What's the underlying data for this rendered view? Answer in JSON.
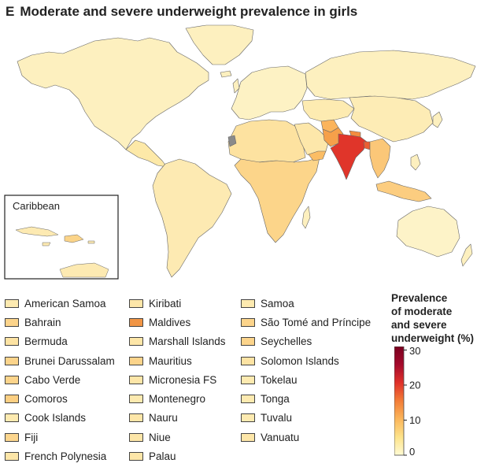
{
  "figure": {
    "panel_letter": "E",
    "title": "Moderate and severe underweight prevalence in girls",
    "inset_label": "Caribbean"
  },
  "legend": {
    "title_lines": [
      "Prevalence",
      "of moderate",
      "and severe",
      "underweight (%)"
    ],
    "ticks": [
      {
        "value": 30,
        "label": "30"
      },
      {
        "value": 20,
        "label": "20"
      },
      {
        "value": 10,
        "label": "10"
      },
      {
        "value": 0,
        "label": "0"
      }
    ],
    "range": [
      0,
      31
    ],
    "color_stops": [
      "#fffbd4",
      "#fde38a",
      "#fbb65b",
      "#f37d37",
      "#e0312a",
      "#a50a2c",
      "#7a0020"
    ]
  },
  "colors": {
    "land_default": "#fdf0bf",
    "ocean": "#ffffff",
    "border": "#666666",
    "no_data": "#8a8a8a"
  },
  "map_regions": [
    {
      "name": "North America",
      "color": "#fdf0bf"
    },
    {
      "name": "Greenland",
      "color": "#fdf0bf"
    },
    {
      "name": "Central America",
      "color": "#fde9a8"
    },
    {
      "name": "South America",
      "color": "#fdeab2"
    },
    {
      "name": "Europe",
      "color": "#fdf2c4"
    },
    {
      "name": "Russia",
      "color": "#fdf0bf"
    },
    {
      "name": "North Africa",
      "color": "#fde2a0"
    },
    {
      "name": "Sub-Saharan Africa",
      "color": "#fcd58a"
    },
    {
      "name": "Arabian Peninsula",
      "color": "#fde7aa"
    },
    {
      "name": "Yemen",
      "color": "#fbbd65"
    },
    {
      "name": "Central Asia",
      "color": "#fdebb1"
    },
    {
      "name": "China",
      "color": "#fdecb5"
    },
    {
      "name": "Pakistan",
      "color": "#f6a04a"
    },
    {
      "name": "Afghanistan",
      "color": "#fbb45c"
    },
    {
      "name": "India",
      "color": "#e0352a"
    },
    {
      "name": "Bangladesh",
      "color": "#ea5d33"
    },
    {
      "name": "Nepal",
      "color": "#f38d40"
    },
    {
      "name": "Southeast Asia",
      "color": "#fbc778"
    },
    {
      "name": "Indonesia",
      "color": "#fccd80"
    },
    {
      "name": "Australia",
      "color": "#fdf3c8"
    },
    {
      "name": "Western Sahara",
      "color": "#8a8a8a"
    }
  ],
  "island_legend": [
    {
      "name": "American Samoa",
      "color": "#fdeab0"
    },
    {
      "name": "Bahrain",
      "color": "#fcd48b"
    },
    {
      "name": "Bermuda",
      "color": "#fde3a3"
    },
    {
      "name": "Brunei Darussalam",
      "color": "#fcd48b"
    },
    {
      "name": "Cabo Verde",
      "color": "#fcd48b"
    },
    {
      "name": "Comoros",
      "color": "#fccf82"
    },
    {
      "name": "Cook Islands",
      "color": "#fdeab0"
    },
    {
      "name": "Fiji",
      "color": "#fcd68e"
    },
    {
      "name": "French Polynesia",
      "color": "#fde6a8"
    },
    {
      "name": "Kiribati",
      "color": "#fde6a8"
    },
    {
      "name": "Maldives",
      "color": "#f19545"
    },
    {
      "name": "Marshall Islands",
      "color": "#fde6a8"
    },
    {
      "name": "Mauritius",
      "color": "#fcd48b"
    },
    {
      "name": "Micronesia FS",
      "color": "#fde6a8"
    },
    {
      "name": "Montenegro",
      "color": "#fdeab0"
    },
    {
      "name": "Nauru",
      "color": "#fde6a8"
    },
    {
      "name": "Niue",
      "color": "#fde6a8"
    },
    {
      "name": "Palau",
      "color": "#fde6a8"
    },
    {
      "name": "Samoa",
      "color": "#fdeab0"
    },
    {
      "name": "São Tomé and Príncipe",
      "color": "#fcd48b"
    },
    {
      "name": "Seychelles",
      "color": "#fcd48b"
    },
    {
      "name": "Solomon Islands",
      "color": "#fde3a3"
    },
    {
      "name": "Tokelau",
      "color": "#fdeab0"
    },
    {
      "name": "Tonga",
      "color": "#fdeab0"
    },
    {
      "name": "Tuvalu",
      "color": "#fdeab0"
    },
    {
      "name": "Vanuatu",
      "color": "#fde6a8"
    }
  ]
}
